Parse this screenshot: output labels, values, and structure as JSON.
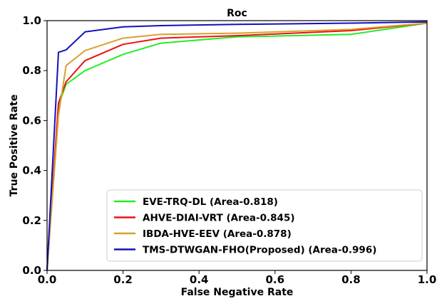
{
  "chart_data": {
    "type": "line",
    "title": "Roc",
    "xlabel": "False Negative Rate",
    "ylabel": "True Positive Rate",
    "xlim": [
      0.0,
      1.0
    ],
    "ylim": [
      0.0,
      1.0
    ],
    "xticks": [
      "0.0",
      "0.2",
      "0.4",
      "0.6",
      "0.8",
      "1.0"
    ],
    "yticks": [
      "0.0",
      "0.2",
      "0.4",
      "0.6",
      "0.8",
      "1.0"
    ],
    "grid": false,
    "legend_position": "lower-right",
    "series": [
      {
        "name": "EVE-TRQ-DL (Area-0.818)",
        "color": "#22ee22",
        "x": [
          0.0,
          0.03,
          0.05,
          0.1,
          0.2,
          0.3,
          0.5,
          0.8,
          1.0
        ],
        "y": [
          0.0,
          0.66,
          0.745,
          0.8,
          0.865,
          0.91,
          0.935,
          0.945,
          0.99
        ]
      },
      {
        "name": "AHVE-DIAI-VRT (Area-0.845)",
        "color": "#ee1111",
        "x": [
          0.0,
          0.03,
          0.05,
          0.1,
          0.2,
          0.3,
          0.5,
          0.8,
          1.0
        ],
        "y": [
          0.0,
          0.67,
          0.755,
          0.84,
          0.905,
          0.93,
          0.94,
          0.96,
          0.99
        ]
      },
      {
        "name": "IBDA-HVE-EEV (Area-0.878)",
        "color": "#daa030",
        "x": [
          0.0,
          0.03,
          0.05,
          0.1,
          0.2,
          0.3,
          0.5,
          0.8,
          1.0
        ],
        "y": [
          0.0,
          0.62,
          0.82,
          0.88,
          0.93,
          0.945,
          0.95,
          0.965,
          0.99
        ]
      },
      {
        "name": "TMS-DTWGAN-FHO(Proposed) (Area-0.996)",
        "color": "#1111bb",
        "x": [
          0.0,
          0.03,
          0.05,
          0.1,
          0.2,
          0.3,
          0.5,
          0.8,
          1.0
        ],
        "y": [
          0.0,
          0.873,
          0.883,
          0.955,
          0.975,
          0.98,
          0.985,
          0.99,
          0.995
        ]
      }
    ]
  }
}
